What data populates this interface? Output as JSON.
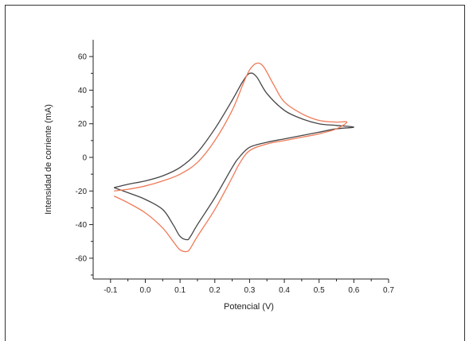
{
  "chart_data": {
    "type": "line",
    "title": "",
    "xlabel": "Potencial (V)",
    "ylabel": "Intensidad de corriente (mA)",
    "xlim": [
      -0.15,
      0.7
    ],
    "ylim": [
      -70,
      70
    ],
    "x_ticks": [
      -0.1,
      0.0,
      0.1,
      0.2,
      0.3,
      0.4,
      0.5,
      0.6,
      0.7
    ],
    "x_tick_labels": [
      "-0.1",
      "0.0",
      "0.1",
      "0.2",
      "0.3",
      "0.4",
      "0.5",
      "0.6",
      "0.7"
    ],
    "y_ticks": [
      -60,
      -40,
      -20,
      0,
      20,
      40,
      60
    ],
    "y_tick_labels": [
      "-60",
      "-40",
      "-20",
      "0",
      "20",
      "40",
      "60"
    ],
    "grid": false,
    "legend": "none",
    "series": [
      {
        "color": "#444444",
        "x": [
          -0.09,
          -0.05,
          0.0,
          0.05,
          0.1,
          0.15,
          0.2,
          0.25,
          0.28,
          0.3,
          0.32,
          0.35,
          0.4,
          0.45,
          0.5,
          0.55,
          0.6,
          0.55,
          0.5,
          0.45,
          0.4,
          0.35,
          0.3,
          0.27,
          0.25,
          0.2,
          0.15,
          0.13,
          0.12,
          0.1,
          0.08,
          0.05,
          0.0,
          -0.05,
          -0.09
        ],
        "y": [
          -18,
          -16,
          -14,
          -11,
          -6,
          3,
          17,
          34,
          45,
          50,
          48,
          38,
          28,
          23,
          20,
          19,
          18,
          17,
          15,
          13,
          11,
          9,
          6,
          0,
          -6,
          -24,
          -40,
          -47,
          -49,
          -47,
          -40,
          -31,
          -25,
          -21,
          -18
        ]
      },
      {
        "color": "#f07a58",
        "x": [
          -0.09,
          -0.05,
          0.0,
          0.05,
          0.1,
          0.15,
          0.2,
          0.25,
          0.28,
          0.3,
          0.32,
          0.34,
          0.37,
          0.4,
          0.45,
          0.5,
          0.55,
          0.58,
          0.55,
          0.5,
          0.45,
          0.4,
          0.35,
          0.3,
          0.27,
          0.25,
          0.2,
          0.15,
          0.13,
          0.12,
          0.1,
          0.08,
          0.05,
          0.0,
          -0.05,
          -0.09
        ],
        "y": [
          -20,
          -19,
          -17,
          -14,
          -10,
          -3,
          10,
          28,
          43,
          52,
          56,
          54,
          43,
          33,
          26,
          22,
          21,
          21,
          17,
          14,
          12,
          10,
          8,
          4,
          -4,
          -12,
          -31,
          -47,
          -54,
          -56,
          -55,
          -50,
          -42,
          -33,
          -27,
          -23
        ]
      }
    ]
  }
}
